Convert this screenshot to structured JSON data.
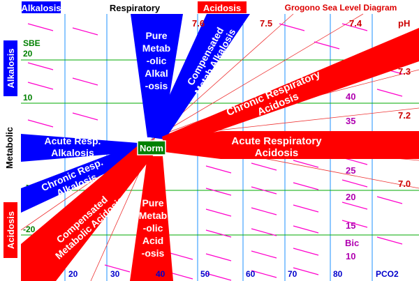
{
  "header": {
    "alkalosis_tag": "Alkalosis",
    "respiratory_label": "Respiratory",
    "acidosis_tag": "Acidosis",
    "title": "Grogono Sea Level Diagram"
  },
  "side_labels": {
    "alkalosis": "Alkalosis",
    "metabolic": "Metabolic",
    "acidosis": "Acidosis"
  },
  "axes": {
    "sbe_label": "SBE",
    "sbe_ticks": [
      "20",
      "10",
      "-20"
    ],
    "sbe_minus10": "-",
    "pco2_label": "PCO2",
    "pco2_ticks": [
      "20",
      "30",
      "40",
      "50",
      "60",
      "70",
      "80"
    ],
    "ph_label": "pH",
    "ph_top_ticks": [
      "7.6",
      "7.5",
      "7.4"
    ],
    "ph_right_ticks": [
      "7.3",
      "7.2",
      "7.0"
    ],
    "bic_label": "Bic",
    "bic_ticks": [
      "40",
      "35",
      "25",
      "20",
      "15",
      "10"
    ]
  },
  "regions": {
    "center": "Norm",
    "pure_metab_alkalosis": [
      "Pure",
      "Metab",
      "-olic",
      "Alkal",
      "-osis"
    ],
    "compensated_metab_alkalosis": [
      "Compensated",
      "Metab Alkalosis"
    ],
    "chronic_resp_acidosis": [
      "Chronic Respiratory",
      "Acidosis"
    ],
    "acute_resp_acidosis": [
      "Acute Respiratory",
      "Acidosis"
    ],
    "acute_resp_alkalosis": [
      "Acute Resp.",
      "Alkalosis"
    ],
    "chronic_resp_alkalosis": [
      "Chronic Resp.",
      "Alkalosis"
    ],
    "compensated_metab_acidosis": [
      "Compensated",
      "Metabolic Acidosis"
    ],
    "pure_metab_acidosis": [
      "Pure",
      "Metab",
      "-olic",
      "Acid",
      "-osis"
    ]
  },
  "colors": {
    "blue": "#0000ff",
    "red": "#ff0000",
    "green_grid": "#00aa00",
    "green_text": "#008000",
    "grid_blue": "#1e90ff",
    "dark_red_text": "#cc0000",
    "magenta": "#ff00cc",
    "purple_text": "#b000b0",
    "dark_blue_text": "#0000cc",
    "norm_green": "#008000"
  }
}
